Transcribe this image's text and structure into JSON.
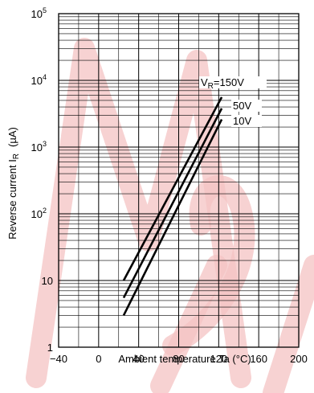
{
  "chart_data": {
    "type": "line",
    "title": "",
    "xlabel": "Ambient temperature   Ta   (°C)",
    "ylabel_main": "Reverse current   I",
    "ylabel_sub": "R",
    "ylabel_unit": "(µA)",
    "xlim": [
      -40,
      200
    ],
    "ylim": [
      1,
      100000
    ],
    "yscale": "log",
    "grid": true,
    "x_tick_labels": [
      "−40",
      "0",
      "40",
      "80",
      "120",
      "160",
      "200"
    ],
    "y_ticks": [
      {
        "label": "10",
        "exp": "5"
      },
      {
        "label": "10",
        "exp": "4"
      },
      {
        "label": "10",
        "exp": "3"
      },
      {
        "label": "10",
        "exp": "2"
      },
      {
        "label": "10",
        "exp": ""
      },
      {
        "label": "1",
        "exp": ""
      }
    ],
    "series": [
      {
        "name_main": "V",
        "name_sub": "R",
        "name_rest": "=150V",
        "x": [
          25,
          123
        ],
        "y": [
          10,
          5600
        ]
      },
      {
        "name_main": "",
        "name_sub": "",
        "name_rest": "50V",
        "x": [
          25,
          123
        ],
        "y": [
          5.5,
          3800
        ]
      },
      {
        "name_main": "",
        "name_sub": "",
        "name_rest": "10V",
        "x": [
          25,
          123
        ],
        "y": [
          3,
          2600
        ]
      }
    ],
    "watermark_text": "Marc Disc"
  }
}
